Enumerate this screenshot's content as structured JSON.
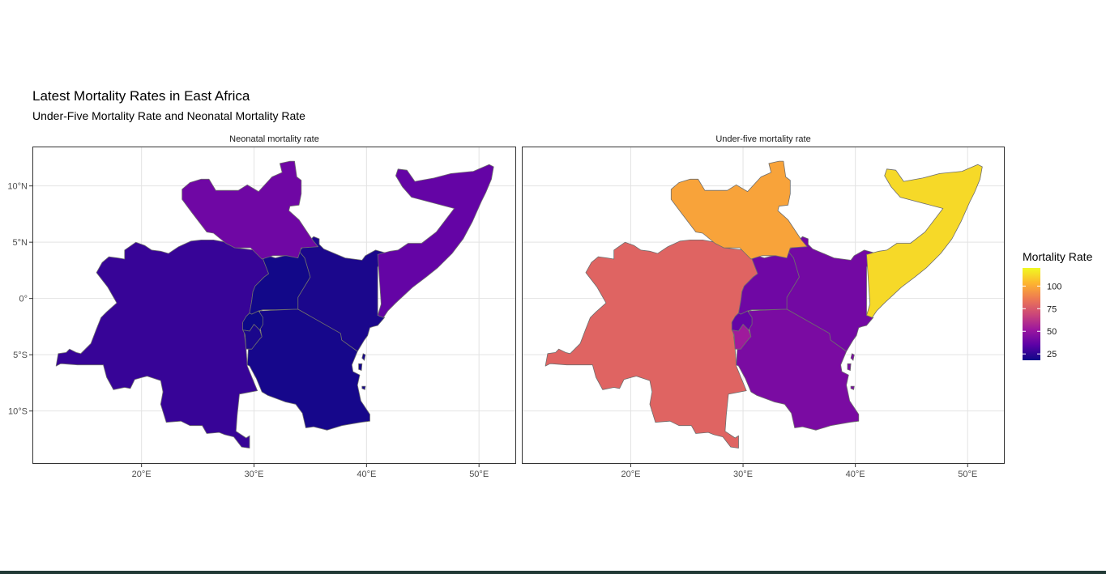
{
  "title": "Latest Mortality Rates in East Africa",
  "subtitle": "Under-Five Mortality Rate and Neonatal Mortality Rate",
  "legend": {
    "title": "Mortality Rate",
    "ticks": [
      25,
      50,
      75,
      100
    ],
    "tick_labels": [
      "25",
      "50",
      "75",
      "100"
    ],
    "range": [
      18,
      120
    ],
    "colors": [
      "#0d0887",
      "#5c01a6",
      "#9c179e",
      "#cc4778",
      "#ed7953",
      "#fdb42f",
      "#f0f921"
    ]
  },
  "axes": {
    "x_ticks": [
      20,
      30,
      40,
      50
    ],
    "x_tick_labels": [
      "20°E",
      "30°E",
      "40°E",
      "50°E"
    ],
    "y_ticks": [
      10,
      5,
      0,
      -5,
      -10
    ],
    "y_tick_labels": [
      "10°N",
      "5°N",
      "0°",
      "5°S",
      "10°S"
    ],
    "xlim": [
      10.3,
      53.3
    ],
    "ylim": [
      -14.7,
      13.5
    ]
  },
  "chart_data": {
    "type": "choropleth",
    "facets": [
      {
        "label": "Neonatal mortality rate",
        "values": {
          "south-sudan": 40,
          "somalia": 37,
          "drc": 27,
          "tanzania": 20,
          "kenya": 21,
          "uganda": 19,
          "rwanda": 17,
          "burundi": 21
        }
      },
      {
        "label": "Under-five mortality rate",
        "values": {
          "south-sudan": 98,
          "somalia": 112,
          "drc": 79,
          "tanzania": 43,
          "kenya": 41,
          "uganda": 40,
          "rwanda": 37,
          "burundi": 53
        }
      }
    ]
  }
}
